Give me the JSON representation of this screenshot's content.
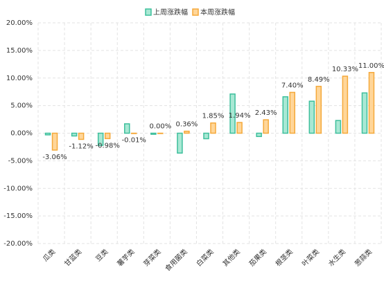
{
  "chart_data": {
    "type": "bar",
    "categories": [
      "瓜类",
      "甘蓝类",
      "豆类",
      "薯芋类",
      "芽菜类",
      "食用菌类",
      "白菜类",
      "其他类",
      "茄果类",
      "根茎类",
      "叶菜类",
      "水生类",
      "葱蒜类"
    ],
    "series": [
      {
        "name": "上周涨跌幅",
        "color": "#3dbf9c",
        "fill": "#a9e8d4",
        "values": [
          -0.3,
          -0.5,
          -2.2,
          1.7,
          -0.2,
          -3.6,
          -1.0,
          7.1,
          -0.6,
          6.6,
          5.8,
          2.3,
          7.3
        ]
      },
      {
        "name": "本周涨跌幅",
        "color": "#f5a93a",
        "fill": "#ffd699",
        "values": [
          -3.06,
          -1.12,
          -0.98,
          -0.01,
          0.0,
          0.36,
          1.85,
          1.94,
          2.43,
          7.4,
          8.49,
          10.33,
          11.0
        ],
        "value_labels": [
          "-3.06%",
          "-1.12%",
          "-0.98%",
          "-0.01%",
          "0.00%",
          "0.36%",
          "1.85%",
          "1.94%",
          "2.43%",
          "7.40%",
          "8.49%",
          "10.33%",
          "11.00%"
        ]
      }
    ],
    "ylim": [
      -20,
      20
    ],
    "yticks": [
      {
        "value": -20,
        "label": "-20.00%"
      },
      {
        "value": -15,
        "label": "-15.00%"
      },
      {
        "value": -10,
        "label": "-10.00%"
      },
      {
        "value": -5,
        "label": "-5.00%"
      },
      {
        "value": 0,
        "label": "0.00%"
      },
      {
        "value": 5,
        "label": "5.00%"
      },
      {
        "value": 10,
        "label": "10.00%"
      },
      {
        "value": 15,
        "label": "15.00%"
      },
      {
        "value": 20,
        "label": "20.00%"
      }
    ],
    "grid": true
  }
}
